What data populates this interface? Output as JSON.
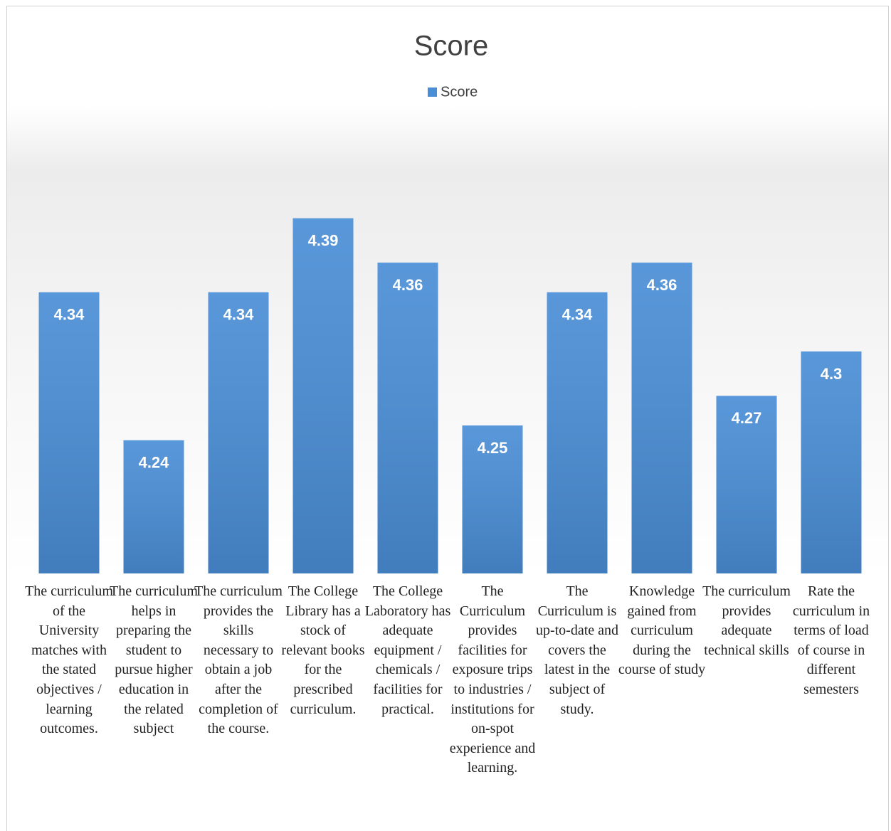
{
  "chart_data": {
    "type": "bar",
    "title": "Score",
    "categories": [
      "The curriculum of the University matches with the stated objectives / learning outcomes.",
      "The curriculum helps in preparing the student to pursue higher education in the related subject",
      "The curriculum provides the skills necessary to obtain a job after the completion of the course.",
      "The College Library has a stock of relevant books for the prescribed curriculum.",
      "The College Laboratory has adequate equipment / chemicals / facilities for practical.",
      "The Curriculum provides facilities for exposure trips to industries / institutions for on-spot experience and learning.",
      "The Curriculum is up-to-date and covers the latest in the subject of study.",
      "Knowledge gained from curriculum during the course of study",
      "The curriculum provides adequate technical skills",
      "Rate the curriculum in terms of load of course in different semesters"
    ],
    "series": [
      {
        "name": "Score",
        "color": "#4a8ed6",
        "values": [
          4.34,
          4.24,
          4.34,
          4.39,
          4.36,
          4.25,
          4.34,
          4.36,
          4.27,
          4.3
        ]
      }
    ],
    "ylim": [
      4.15,
      4.45
    ],
    "legend": "top",
    "grid": false
  }
}
